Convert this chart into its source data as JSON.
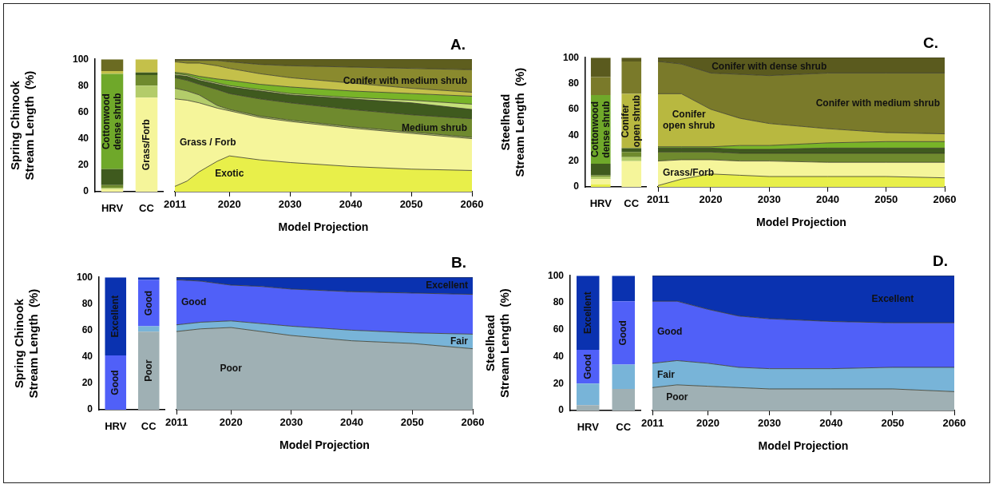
{
  "chart_data": [
    {
      "type": "bar",
      "stacked": true,
      "categories": [
        "HRV",
        "CC"
      ],
      "ylabel": "Spring Chinook\nStream Length  (%)",
      "ylim": [
        0,
        100
      ],
      "yticks": [
        0,
        20,
        40,
        60,
        80,
        100
      ],
      "series": [
        {
          "name": "Grass/Forb",
          "color": "#f5f59a",
          "values": [
            2,
            71
          ]
        },
        {
          "color": "#b3cc6a",
          "values": [
            1,
            9
          ]
        },
        {
          "color": "#6f8a2e",
          "values": [
            2,
            8
          ]
        },
        {
          "color": "#3f5a1e",
          "values": [
            12,
            2
          ]
        },
        {
          "name": "Cottonwood\ndense shrub",
          "color": "#6fa82a",
          "values": [
            72,
            null
          ]
        },
        {
          "color": "#c4c04a",
          "values": [
            2,
            10
          ]
        },
        {
          "color": "#6b6b22",
          "values": [
            9,
            null
          ]
        }
      ]
    },
    {
      "type": "area",
      "stacked": true,
      "title": "A.",
      "xlabel": "Model Projection",
      "x": [
        2011,
        2013,
        2015,
        2018,
        2020,
        2025,
        2030,
        2040,
        2050,
        2060
      ],
      "xlim": [
        2011,
        2060
      ],
      "xticks": [
        2011,
        2020,
        2030,
        2040,
        2050,
        2060
      ],
      "ylim": [
        0,
        100
      ],
      "yticks": [
        0,
        20,
        40,
        60,
        80,
        100
      ],
      "tick_labels": "x",
      "series": [
        {
          "name": "Exotic",
          "color": "#e8ef4a",
          "values": [
            4,
            8,
            15,
            23,
            27,
            24,
            22,
            19,
            17,
            16
          ]
        },
        {
          "name": "Grass / Forb",
          "color": "#f5f59a",
          "values": [
            66,
            61,
            52,
            40,
            34,
            32,
            31,
            29,
            27,
            24
          ]
        },
        {
          "color": "#b3cc6a",
          "values": [
            8,
            7,
            6,
            2,
            1,
            1,
            1,
            1,
            1,
            1
          ]
        },
        {
          "name": "Medium shrub",
          "color": "#6f8a2e",
          "values": [
            8,
            8,
            8,
            12,
            12,
            13,
            13,
            13,
            13,
            14
          ]
        },
        {
          "color": "#3f5a1e",
          "values": [
            2,
            3,
            3,
            4,
            5,
            6,
            6,
            8,
            9,
            7
          ]
        },
        {
          "color": "#c6e07a",
          "values": [
            1,
            1,
            1,
            1,
            1,
            1,
            1,
            1,
            2,
            4
          ]
        },
        {
          "color": "#78b428",
          "values": [
            1,
            1,
            2,
            3,
            4,
            4,
            5,
            5,
            5,
            6
          ]
        },
        {
          "color": "#c4c04a",
          "values": [
            8,
            8,
            10,
            10,
            9,
            8,
            7,
            6,
            4,
            3
          ]
        },
        {
          "name": "Conifer with medium shrub",
          "color": "#8a8a2e",
          "values": [
            1,
            2,
            2,
            4,
            5,
            7,
            9,
            12,
            15,
            17
          ]
        },
        {
          "color": "#5e5e1e",
          "values": [
            1,
            1,
            1,
            1,
            2,
            4,
            5,
            6,
            7,
            8
          ]
        }
      ]
    },
    {
      "type": "bar",
      "stacked": true,
      "categories": [
        "HRV",
        "CC"
      ],
      "ylabel": "Steelhead\nStream Length  (%)",
      "ylim": [
        0,
        100
      ],
      "yticks": [
        0,
        20,
        40,
        60,
        80,
        100
      ],
      "series": [
        {
          "color": "#e8ef4a",
          "values": [
            2,
            null
          ]
        },
        {
          "color": "#f5f59a",
          "values": [
            4,
            20
          ]
        },
        {
          "color": "#b3cc6a",
          "values": [
            2,
            3
          ]
        },
        {
          "color": "#6f8a2e",
          "values": [
            1,
            4
          ]
        },
        {
          "color": "#3f5a1e",
          "values": [
            9,
            3
          ]
        },
        {
          "name": "Cottonwood\ndense shrub",
          "color": "#6fa82a",
          "values": [
            53,
            null
          ]
        },
        {
          "name": "Conifer\nopen shrub",
          "color": "#b8b840",
          "values": [
            null,
            42
          ]
        },
        {
          "color": "#7a7a2a",
          "values": [
            14,
            25
          ]
        },
        {
          "color": "#5a5a1e",
          "values": [
            15,
            3
          ]
        }
      ]
    },
    {
      "type": "area",
      "stacked": true,
      "title": "C.",
      "xlabel": "Model Projection",
      "x": [
        2011,
        2015,
        2020,
        2025,
        2030,
        2040,
        2050,
        2060
      ],
      "xlim": [
        2011,
        2060
      ],
      "xticks": [
        2011,
        2020,
        2030,
        2040,
        2050,
        2060
      ],
      "ylim": [
        0,
        100
      ],
      "yticks": [
        0,
        20,
        40,
        60,
        80,
        100
      ],
      "tick_labels": "x",
      "series": [
        {
          "color": "#e8ef4a",
          "values": [
            1,
            6,
            10,
            9,
            8,
            8,
            8,
            7
          ]
        },
        {
          "name": "Grass/Forb",
          "color": "#f5f59a",
          "values": [
            19,
            15,
            11,
            11,
            12,
            11,
            11,
            12
          ]
        },
        {
          "color": "#6f8a2e",
          "values": [
            7,
            6,
            6,
            6,
            6,
            7,
            7,
            7
          ]
        },
        {
          "color": "#3f5a1e",
          "values": [
            3,
            3,
            3,
            3,
            3,
            4,
            4,
            4
          ]
        },
        {
          "color": "#78b428",
          "values": [
            1,
            1,
            1,
            3,
            3,
            4,
            5,
            5
          ]
        },
        {
          "name": "Conifer\nopen shrub",
          "color": "#b8b840",
          "values": [
            41,
            41,
            29,
            21,
            17,
            11,
            7,
            6
          ]
        },
        {
          "name": "Conifer with medium shrub",
          "color": "#7a7a2a",
          "values": [
            25,
            23,
            28,
            34,
            37,
            43,
            46,
            47
          ]
        },
        {
          "name": "Conifer with dense shrub",
          "color": "#5a5a1e",
          "values": [
            3,
            5,
            12,
            13,
            14,
            12,
            12,
            12
          ]
        }
      ]
    },
    {
      "type": "bar",
      "stacked": true,
      "categories": [
        "HRV",
        "CC"
      ],
      "ylabel": "Spring Chinook\nStream Length  (%)",
      "ylim": [
        0,
        100
      ],
      "yticks": [
        0,
        20,
        40,
        60,
        80,
        100
      ],
      "series": [
        {
          "name": "Poor",
          "color": "#9fb0b4",
          "values": [
            null,
            59
          ]
        },
        {
          "color": "#78b4d8",
          "values": [
            null,
            4
          ]
        },
        {
          "name": "Good",
          "color": "#5060f8",
          "values": [
            41,
            35
          ]
        },
        {
          "name": "Excellent",
          "color": "#0a32b0",
          "values": [
            59,
            2
          ]
        }
      ]
    },
    {
      "type": "area",
      "stacked": true,
      "title": "B.",
      "xlabel": "Model Projection",
      "x": [
        2011,
        2015,
        2020,
        2025,
        2030,
        2040,
        2050,
        2060
      ],
      "xlim": [
        2011,
        2060
      ],
      "xticks": [
        2011,
        2020,
        2030,
        2040,
        2050,
        2060
      ],
      "ylim": [
        0,
        100
      ],
      "yticks": [
        0,
        20,
        40,
        60,
        80,
        100
      ],
      "tick_labels": "x",
      "series": [
        {
          "name": "Poor",
          "color": "#9fb0b4",
          "values": [
            59,
            61,
            62,
            59,
            56,
            52,
            50,
            46
          ]
        },
        {
          "name": "Fair",
          "color": "#78b4d8",
          "values": [
            5,
            5,
            5,
            6,
            7,
            8,
            8,
            11
          ]
        },
        {
          "name": "Good",
          "color": "#5060f8",
          "values": [
            34,
            31,
            27,
            28,
            28,
            29,
            30,
            30
          ]
        },
        {
          "name": "Excellent",
          "color": "#0a32b0",
          "values": [
            2,
            3,
            6,
            7,
            9,
            11,
            12,
            13
          ]
        }
      ]
    },
    {
      "type": "bar",
      "stacked": true,
      "categories": [
        "HRV",
        "CC"
      ],
      "ylabel": "Steelhead\nStream Length  (%)",
      "ylim": [
        0,
        100
      ],
      "yticks": [
        0,
        20,
        40,
        60,
        80,
        100
      ],
      "series": [
        {
          "color": "#9fb0b4",
          "values": [
            4,
            16
          ]
        },
        {
          "color": "#78b4d8",
          "values": [
            16,
            18
          ]
        },
        {
          "name": "Good",
          "color": "#5060f8",
          "values": [
            25,
            47
          ]
        },
        {
          "name": "Excellent",
          "color": "#0a32b0",
          "values": [
            55,
            19
          ]
        }
      ]
    },
    {
      "type": "area",
      "stacked": true,
      "title": "D.",
      "xlabel": "Model Projection",
      "x": [
        2011,
        2015,
        2020,
        2025,
        2030,
        2040,
        2050,
        2060
      ],
      "xlim": [
        2011,
        2060
      ],
      "xticks": [
        2011,
        2020,
        2030,
        2040,
        2050,
        2060
      ],
      "ylim": [
        0,
        100
      ],
      "yticks": [
        0,
        20,
        40,
        60,
        80,
        100
      ],
      "tick_labels": "x",
      "series": [
        {
          "name": "Poor",
          "color": "#9fb0b4",
          "values": [
            17,
            19,
            18,
            17,
            16,
            16,
            16,
            14
          ]
        },
        {
          "name": "Fair",
          "color": "#78b4d8",
          "values": [
            18,
            18,
            17,
            15,
            15,
            15,
            16,
            18
          ]
        },
        {
          "name": "Good",
          "color": "#5060f8",
          "values": [
            46,
            44,
            40,
            38,
            37,
            35,
            33,
            33
          ]
        },
        {
          "name": "Excellent",
          "color": "#0a32b0",
          "values": [
            19,
            19,
            25,
            30,
            32,
            34,
            35,
            35
          ]
        }
      ]
    }
  ]
}
